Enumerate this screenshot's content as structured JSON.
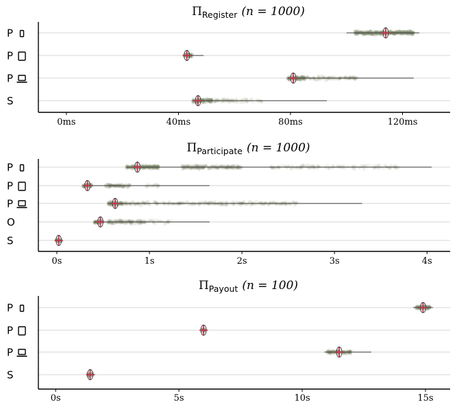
{
  "figure": {
    "background": "#ffffff",
    "cloud_color": "#8a9176",
    "marker_color": "#c0334d",
    "grid_color": "#d6d6d6"
  },
  "chart_data": [
    {
      "type": "scatter",
      "subtype": "strip-plot with range whiskers and violin",
      "title_symbol": "Π",
      "title_sub": "Register",
      "title_n": "(n = 1000)",
      "x_unit": "ms",
      "xlim": [
        -10,
        137
      ],
      "xticks": [
        0,
        40,
        80,
        120
      ],
      "xtick_labels": [
        "0ms",
        "40ms",
        "80ms",
        "120ms"
      ],
      "grid": "horizontal",
      "rows": [
        {
          "label": "P",
          "device": "phone",
          "min": 100,
          "max": 126,
          "median": 114,
          "cloud": [
            [
              103,
              124,
              1.0
            ]
          ]
        },
        {
          "label": "P",
          "device": "tablet",
          "min": 42,
          "max": 49,
          "median": 43,
          "cloud": [
            [
              42,
              45,
              1.0
            ]
          ]
        },
        {
          "label": "P",
          "device": "laptop",
          "min": 79,
          "max": 124,
          "median": 81,
          "cloud": [
            [
              79,
              85,
              1.0
            ],
            [
              85,
              104,
              0.35
            ]
          ]
        },
        {
          "label": "S",
          "device": "",
          "min": 45,
          "max": 93,
          "median": 47,
          "cloud": [
            [
              45,
              52,
              1.0
            ],
            [
              52,
              70,
              0.25
            ]
          ]
        }
      ]
    },
    {
      "type": "scatter",
      "subtype": "strip-plot with range whiskers and violin",
      "title_symbol": "Π",
      "title_sub": "Participate",
      "title_n": "(n = 1000)",
      "x_unit": "s",
      "xlim": [
        -0.2,
        4.25
      ],
      "xticks": [
        0,
        1,
        2,
        3,
        4
      ],
      "xtick_labels": [
        "0s",
        "1s",
        "2s",
        "3s",
        "4s"
      ],
      "grid": "horizontal",
      "rows": [
        {
          "label": "P",
          "device": "phone",
          "min": 0.75,
          "max": 4.05,
          "median": 0.87,
          "cloud": [
            [
              0.75,
              1.1,
              0.9
            ],
            [
              1.35,
              2.0,
              0.55
            ],
            [
              2.3,
              3.7,
              0.22
            ]
          ]
        },
        {
          "label": "P",
          "device": "tablet",
          "min": 0.28,
          "max": 1.65,
          "median": 0.33,
          "cloud": [
            [
              0.28,
              0.38,
              0.9
            ],
            [
              0.52,
              0.8,
              0.55
            ],
            [
              0.95,
              1.1,
              0.2
            ]
          ]
        },
        {
          "label": "P",
          "device": "laptop",
          "min": 0.55,
          "max": 3.3,
          "median": 0.63,
          "cloud": [
            [
              0.55,
              0.7,
              0.9
            ],
            [
              0.7,
              1.0,
              0.35
            ],
            [
              1.05,
              2.6,
              0.3
            ]
          ]
        },
        {
          "label": "O",
          "device": "",
          "min": 0.4,
          "max": 1.65,
          "median": 0.47,
          "cloud": [
            [
              0.4,
              0.5,
              0.9
            ],
            [
              0.55,
              0.95,
              0.55
            ],
            [
              0.95,
              1.25,
              0.2
            ]
          ]
        },
        {
          "label": "S",
          "device": "",
          "min": -0.01,
          "max": 0.06,
          "median": 0.02,
          "cloud": [
            [
              -0.01,
              0.05,
              1.0
            ]
          ]
        }
      ]
    },
    {
      "type": "scatter",
      "subtype": "strip-plot with range whiskers and violin",
      "title_symbol": "Π",
      "title_sub": "Payout",
      "title_n": "(n = 100)",
      "x_unit": "s",
      "xlim": [
        -0.7,
        16.0
      ],
      "xticks": [
        0,
        5,
        10,
        15
      ],
      "xtick_labels": [
        "0s",
        "5s",
        "10s",
        "15s"
      ],
      "grid": "horizontal",
      "rows": [
        {
          "label": "P",
          "device": "phone",
          "min": 14.5,
          "max": 15.3,
          "median": 14.9,
          "cloud": [
            [
              14.6,
              15.2,
              1.0
            ]
          ]
        },
        {
          "label": "P",
          "device": "tablet",
          "min": 5.9,
          "max": 6.1,
          "median": 6.0,
          "cloud": [
            [
              5.92,
              6.08,
              1.0
            ]
          ]
        },
        {
          "label": "P",
          "device": "laptop",
          "min": 10.9,
          "max": 12.8,
          "median": 11.5,
          "cloud": [
            [
              11.0,
              12.0,
              0.8
            ]
          ]
        },
        {
          "label": "S",
          "device": "",
          "min": 1.25,
          "max": 1.6,
          "median": 1.4,
          "cloud": [
            [
              1.3,
              1.5,
              1.0
            ]
          ]
        }
      ]
    }
  ]
}
